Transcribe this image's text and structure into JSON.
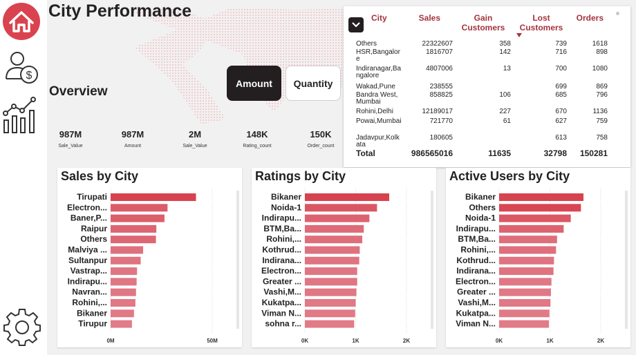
{
  "nav": {
    "icons": [
      "home-icon",
      "user-money-icon",
      "analytics-icon",
      "settings-icon"
    ]
  },
  "header": {
    "title": "City Performance"
  },
  "overview": {
    "label": "Overview",
    "toggle_amount": "Amount",
    "toggle_quantity": "Quantity",
    "kpis": [
      {
        "value": "987M",
        "label": "Sale_Value"
      },
      {
        "value": "987M",
        "label": "Amount"
      },
      {
        "value": "2M",
        "label": "Sale_Value"
      },
      {
        "value": "148K",
        "label": "Rating_count"
      },
      {
        "value": "150K",
        "label": "Order_count"
      }
    ]
  },
  "table": {
    "headers": {
      "city": "City",
      "sales": "Sales",
      "gain": "Gain Customers",
      "lost": "Lost Customers",
      "orders": "Orders"
    },
    "rows": [
      {
        "city": "Others",
        "sales": "22322607",
        "gain": "358",
        "lost": "739",
        "orders": "1618"
      },
      {
        "city": "HSR,Bangalore",
        "sales": "1816707",
        "gain": "142",
        "lost": "716",
        "orders": "898"
      },
      {
        "city": "Indiranagar,Bangalore",
        "sales": "4807006",
        "gain": "13",
        "lost": "700",
        "orders": "1080"
      },
      {
        "city": "Wakad,Pune",
        "sales": "238555",
        "gain": "",
        "lost": "699",
        "orders": "869"
      },
      {
        "city": "Bandra West,Mumbai",
        "sales": "858825",
        "gain": "106",
        "lost": "685",
        "orders": "796"
      },
      {
        "city": "Rohini,Delhi",
        "sales": "12189017",
        "gain": "227",
        "lost": "670",
        "orders": "1136"
      },
      {
        "city": "Powai,Mumbai",
        "sales": "721770",
        "gain": "61",
        "lost": "627",
        "orders": "759"
      },
      {
        "city": "Jadavpur,Kolkata",
        "sales": "180605",
        "gain": "",
        "lost": "613",
        "orders": "758"
      }
    ],
    "total": {
      "label": "Total",
      "sales": "986565016",
      "gain": "11635",
      "lost": "32798",
      "orders": "150281"
    }
  },
  "colors": {
    "accent": "#d9434f",
    "dark": "#231f20",
    "header_text": "#a3343d"
  },
  "chart_data": [
    {
      "type": "bar",
      "title": "Sales by City",
      "categories": [
        "Tirupati",
        "Electron...",
        "Baner,P...",
        "Raipur",
        "Others",
        "Malviya ...",
        "Sultanpur",
        "Vastrap...",
        "Indirapu...",
        "Navran...",
        "Rohini,...",
        "Bikaner",
        "Tirupur"
      ],
      "values": [
        42,
        28,
        26.5,
        22.5,
        22.3,
        16,
        14.8,
        13,
        12.8,
        12.5,
        12.2,
        11.5,
        10.5
      ],
      "xlim": [
        0,
        50
      ],
      "ticks": [
        "0M",
        "50M"
      ]
    },
    {
      "type": "bar",
      "title": "Ratings by City",
      "categories": [
        "Bikaner",
        "Noida-1",
        "Indirapu...",
        "BTM,Ba...",
        "Rohini,...",
        "Kothrud...",
        "Indirana...",
        "Electron...",
        "Greater ...",
        "Vashi,M...",
        "Kukatpa...",
        "Viman N...",
        "sohna r..."
      ],
      "values": [
        1660,
        1420,
        1270,
        1160,
        1130,
        1080,
        1070,
        1030,
        1030,
        1015,
        1000,
        990,
        970
      ],
      "xlim": [
        0,
        2000
      ],
      "ticks": [
        "0K",
        "1K",
        "2K"
      ]
    },
    {
      "type": "bar",
      "title": "Active Users by City",
      "categories": [
        "Bikaner",
        "Others",
        "Noida-1",
        "Indirapu...",
        "BTM,Ba...",
        "Rohini,...",
        "Kothrud...",
        "Indirana...",
        "Electron...",
        "Greater ...",
        "Vashi,M...",
        "Kukatpa...",
        "Viman N..."
      ],
      "values": [
        1660,
        1610,
        1410,
        1270,
        1140,
        1120,
        1080,
        1070,
        1030,
        1020,
        1010,
        990,
        980
      ],
      "xlim": [
        0,
        2000
      ],
      "ticks": [
        "0K",
        "1K",
        "2K"
      ]
    }
  ]
}
